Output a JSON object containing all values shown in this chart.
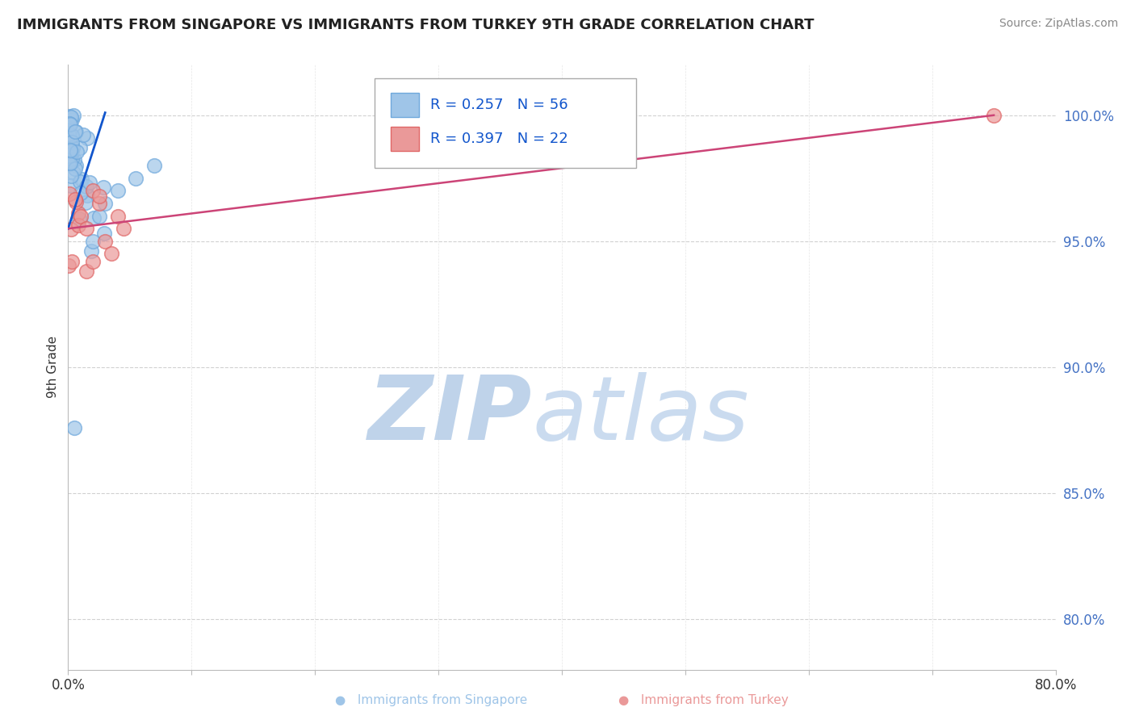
{
  "title": "IMMIGRANTS FROM SINGAPORE VS IMMIGRANTS FROM TURKEY 9TH GRADE CORRELATION CHART",
  "source_text": "Source: ZipAtlas.com",
  "ylabel": "9th Grade",
  "xlim": [
    0.0,
    0.8
  ],
  "ylim": [
    0.78,
    1.02
  ],
  "yticks": [
    0.8,
    0.85,
    0.9,
    0.95,
    1.0
  ],
  "ytick_labels": [
    "80.0%",
    "85.0%",
    "90.0%",
    "95.0%",
    "100.0%"
  ],
  "xticks": [
    0.0,
    0.1,
    0.2,
    0.3,
    0.4,
    0.5,
    0.6,
    0.7,
    0.8
  ],
  "xtick_labels": [
    "0.0%",
    "",
    "",
    "",
    "",
    "",
    "",
    "",
    "80.0%"
  ],
  "singapore_color": "#9fc5e8",
  "singapore_edge_color": "#6fa8dc",
  "turkey_color": "#ea9999",
  "turkey_edge_color": "#e06666",
  "singapore_R": 0.257,
  "singapore_N": 56,
  "turkey_R": 0.397,
  "turkey_N": 22,
  "singapore_line_color": "#1155cc",
  "turkey_line_color": "#cc4477",
  "watermark_zip_color": "#b8cfe8",
  "watermark_atlas_color": "#c5d8ee",
  "legend_label_color": "#1155cc",
  "ytick_color": "#4472c4",
  "bottom_legend_sg_color": "#9fc5e8",
  "bottom_legend_tk_color": "#ea9999"
}
